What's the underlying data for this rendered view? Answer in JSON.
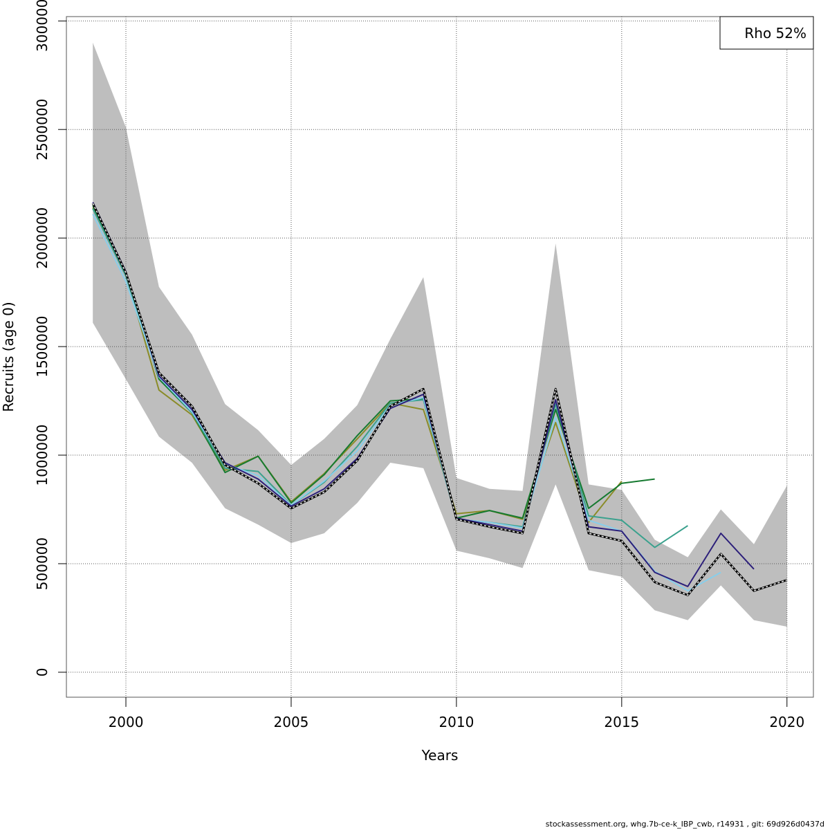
{
  "footer": "stockassessment.org, whg.7b-ce-k_IBP_cwb, r14931 , git: 69d926d0437d",
  "chart_data": {
    "type": "line",
    "title": "",
    "xlabel": "Years",
    "ylabel": "Recruits (age 0)",
    "xlim": [
      1998.2,
      2020.8
    ],
    "ylim": [
      -115000,
      3020000
    ],
    "xticks": [
      2000,
      2005,
      2010,
      2015,
      2020
    ],
    "yticks": [
      0,
      500000,
      1000000,
      1500000,
      2000000,
      2500000,
      3000000
    ],
    "ytick_labels": [
      "0",
      "500000",
      "1000000",
      "1500000",
      "2000000",
      "2500000",
      "3000000"
    ],
    "grid": true,
    "legend": {
      "position": "top-right",
      "text": "Rho 52%"
    },
    "band": {
      "color": "#bebebe",
      "x": [
        1999,
        2000,
        2001,
        2002,
        2003,
        2004,
        2005,
        2006,
        2007,
        2008,
        2009,
        2010,
        2011,
        2012,
        2013,
        2014,
        2015,
        2016,
        2017,
        2018,
        2019,
        2020
      ],
      "upper": [
        2900000,
        2510000,
        1775000,
        1555000,
        1235000,
        1115000,
        955000,
        1075000,
        1230000,
        1535000,
        1820000,
        895000,
        845000,
        835000,
        1975000,
        865000,
        840000,
        610000,
        530000,
        750000,
        590000,
        860000
      ],
      "lower": [
        1610000,
        1350000,
        1085000,
        965000,
        755000,
        680000,
        595000,
        640000,
        780000,
        965000,
        940000,
        560000,
        525000,
        480000,
        865000,
        470000,
        440000,
        285000,
        240000,
        400000,
        240000,
        210000
      ]
    },
    "series": [
      {
        "color": "#000000",
        "dashed": true,
        "x": [
          1999,
          2000,
          2001,
          2002,
          2003,
          2004,
          2005,
          2006,
          2007,
          2008,
          2009,
          2010,
          2011,
          2012,
          2013,
          2014,
          2015,
          2016,
          2017,
          2018,
          2019,
          2020
        ],
        "values": [
          2160000,
          1840000,
          1380000,
          1225000,
          955000,
          870000,
          755000,
          830000,
          975000,
          1225000,
          1305000,
          705000,
          670000,
          640000,
          1305000,
          640000,
          605000,
          415000,
          355000,
          545000,
          375000,
          425000
        ]
      },
      {
        "color": "#2c1f7a",
        "x": [
          1999,
          2000,
          2001,
          2002,
          2003,
          2004,
          2005,
          2006,
          2007,
          2008,
          2009,
          2010,
          2011,
          2012,
          2013,
          2014,
          2015,
          2016,
          2017,
          2018,
          2019
        ],
        "values": [
          2165000,
          1845000,
          1365000,
          1210000,
          965000,
          890000,
          765000,
          845000,
          985000,
          1215000,
          1280000,
          710000,
          680000,
          650000,
          1255000,
          670000,
          650000,
          460000,
          395000,
          640000,
          475000
        ]
      },
      {
        "color": "#87ceeb",
        "x": [
          1999,
          2000,
          2001,
          2002,
          2003,
          2004,
          2005,
          2006,
          2007,
          2008,
          2009,
          2010,
          2011,
          2012,
          2013,
          2014,
          2015,
          2016,
          2017,
          2018
        ],
        "values": [
          2110000,
          1800000,
          1360000,
          1200000,
          960000,
          905000,
          770000,
          880000,
          1020000,
          1230000,
          1265000,
          705000,
          690000,
          665000,
          1175000,
          700000,
          650000,
          465000,
          375000,
          460000
        ]
      },
      {
        "color": "#3aa18d",
        "x": [
          1999,
          2000,
          2001,
          2002,
          2003,
          2004,
          2005,
          2006,
          2007,
          2008,
          2009,
          2010,
          2011,
          2012,
          2013,
          2014,
          2015,
          2016,
          2017
        ],
        "values": [
          2135000,
          1825000,
          1360000,
          1195000,
          940000,
          925000,
          770000,
          875000,
          1040000,
          1240000,
          1255000,
          705000,
          690000,
          670000,
          1235000,
          720000,
          700000,
          575000,
          675000
        ]
      },
      {
        "color": "#167a30",
        "x": [
          1999,
          2000,
          2001,
          2002,
          2003,
          2004,
          2005,
          2006,
          2007,
          2008,
          2009,
          2010,
          2011,
          2012,
          2013,
          2014,
          2015,
          2016
        ],
        "values": [
          2150000,
          1835000,
          1350000,
          1195000,
          920000,
          995000,
          780000,
          910000,
          1090000,
          1250000,
          1260000,
          710000,
          745000,
          710000,
          1210000,
          755000,
          870000,
          890000
        ]
      },
      {
        "color": "#8a8c28",
        "x": [
          1999,
          2000,
          2001,
          2002,
          2003,
          2004,
          2005,
          2006,
          2007,
          2008,
          2009,
          2010,
          2011,
          2012,
          2013,
          2014,
          2015
        ],
        "values": [
          2140000,
          1830000,
          1300000,
          1185000,
          930000,
          995000,
          785000,
          915000,
          1075000,
          1240000,
          1210000,
          730000,
          745000,
          705000,
          1150000,
          690000,
          880000
        ]
      }
    ]
  }
}
